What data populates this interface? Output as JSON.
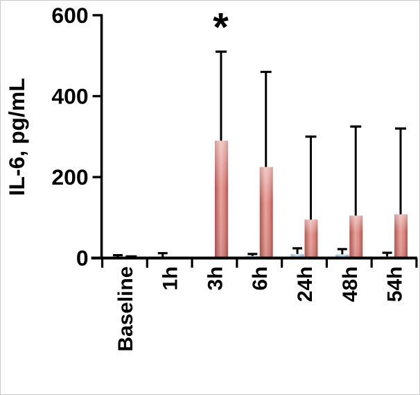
{
  "figure": {
    "background": "#ffffff",
    "border_color": "#c9c9c9"
  },
  "chart_data": {
    "type": "bar",
    "title": "",
    "xlabel": "",
    "ylabel": "IL-6, pg/mL",
    "ylim": [
      0,
      600
    ],
    "yticks": [
      0,
      200,
      400,
      600
    ],
    "grid": false,
    "legend": "none",
    "categories": [
      "Baseline",
      "1h",
      "3h",
      "6h",
      "24h",
      "48h",
      "54h"
    ],
    "series": [
      {
        "name": "blue-series",
        "color": "#a9c5e2",
        "color_light": "#cfdff0",
        "color_edge": "#86a9cf",
        "values": [
          3,
          2,
          2,
          5,
          10,
          9,
          4
        ],
        "error_up": [
          4,
          10,
          0,
          5,
          14,
          13,
          9
        ]
      },
      {
        "name": "red-series",
        "color": "#d9837c",
        "color_light": "#e6a49d",
        "color_edge": "#b2524d",
        "values": [
          2,
          3,
          290,
          225,
          95,
          105,
          108
        ],
        "error_up": [
          2,
          0,
          220,
          235,
          205,
          220,
          212
        ]
      }
    ],
    "annotations": [
      {
        "text": "*",
        "category": "3h",
        "series": "red-series",
        "meaning": "significant"
      }
    ],
    "error_bar_color": "#000000",
    "axis_color": "#000000"
  }
}
